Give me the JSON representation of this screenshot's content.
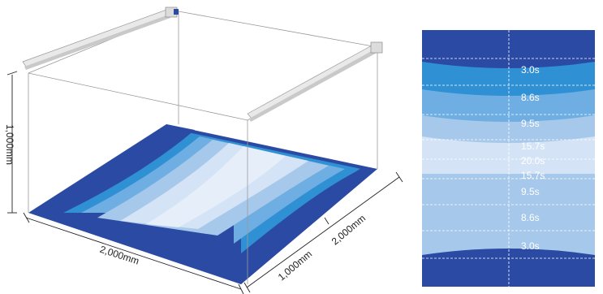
{
  "colors": {
    "band_1": "#2b4aa3",
    "band_2": "#2f90d4",
    "band_3": "#6eaee2",
    "band_4": "#a6c8ea",
    "band_5": "#d4e3f5",
    "frame": "#9a9a9a",
    "dimension": "#222222"
  },
  "icons": [
    "linear-light-bar-icon",
    "light-bar-end-cap-icon"
  ],
  "dimensions": {
    "height_label": "1,000mm",
    "width_label": "2,000mm",
    "depth_label": "2,000mm",
    "half_depth_label": "1,000mm"
  },
  "contour_map": {
    "labels": [
      "3.0s",
      "8.6s",
      "9.5s",
      "15.7s",
      "20.0s",
      "15.7s",
      "9.5s",
      "8.6s",
      "3.0s"
    ]
  }
}
